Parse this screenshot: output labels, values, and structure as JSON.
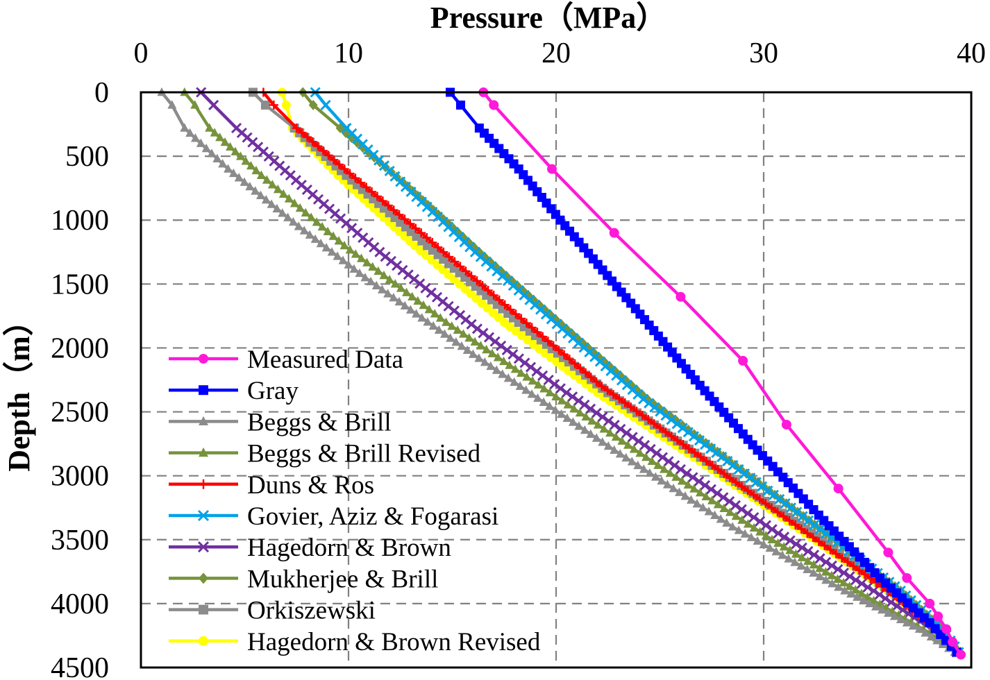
{
  "chart_data": {
    "type": "line",
    "title": "",
    "xlabel": "Pressure（MPa）",
    "ylabel": "Depth（m）",
    "x_axis_position": "top",
    "y_axis_inverted": true,
    "xlim": [
      0,
      40
    ],
    "ylim": [
      0,
      4500
    ],
    "xticks": [
      "0",
      "10",
      "20",
      "30",
      "40"
    ],
    "yticks": [
      "0",
      "500",
      "1000",
      "1500",
      "2000",
      "2500",
      "3000",
      "3500",
      "4000",
      "4500"
    ],
    "grid": true,
    "legend_position": "bottom-left",
    "series": [
      {
        "name": "Measured Data",
        "color": "#ff19d8",
        "marker": "circle",
        "points": [
          [
            16.5,
            0
          ],
          [
            17.0,
            100
          ],
          [
            19.8,
            600
          ],
          [
            22.8,
            1100
          ],
          [
            26.0,
            1600
          ],
          [
            29.0,
            2100
          ],
          [
            31.1,
            2600
          ],
          [
            33.6,
            3100
          ],
          [
            36.0,
            3600
          ],
          [
            36.9,
            3800
          ],
          [
            38.0,
            4000
          ],
          [
            38.4,
            4100
          ],
          [
            38.8,
            4200
          ],
          [
            39.1,
            4300
          ],
          [
            39.5,
            4400
          ]
        ]
      },
      {
        "name": "Gray",
        "color": "#0000ff",
        "marker": "square",
        "points": [
          [
            14.9,
            0
          ],
          [
            15.4,
            100
          ],
          [
            16.3,
            280
          ],
          [
            18.2,
            600
          ],
          [
            20.2,
            1000
          ],
          [
            23.6,
            1650
          ],
          [
            26.7,
            2250
          ],
          [
            29.7,
            2800
          ],
          [
            32.9,
            3350
          ],
          [
            35.6,
            3800
          ],
          [
            38.0,
            4150
          ],
          [
            39.3,
            4380
          ]
        ]
      },
      {
        "name": "Beggs & Brill",
        "color": "#8c8c8c",
        "marker": "triangle",
        "points": [
          [
            1.0,
            0
          ],
          [
            1.5,
            100
          ],
          [
            2.1,
            280
          ],
          [
            4.2,
            600
          ],
          [
            7.6,
            1050
          ],
          [
            10.8,
            1450
          ],
          [
            16.0,
            2050
          ],
          [
            22.8,
            2800
          ],
          [
            28.5,
            3400
          ],
          [
            33.9,
            3900
          ],
          [
            37.5,
            4200
          ],
          [
            39.2,
            4380
          ]
        ]
      },
      {
        "name": "Beggs & Brill Revised",
        "color": "#77933c",
        "marker": "triangle",
        "points": [
          [
            2.1,
            0
          ],
          [
            2.6,
            100
          ],
          [
            3.3,
            280
          ],
          [
            5.8,
            650
          ],
          [
            9.8,
            1200
          ],
          [
            14.7,
            1800
          ],
          [
            19.7,
            2350
          ],
          [
            25.2,
            2950
          ],
          [
            30.4,
            3500
          ],
          [
            35.0,
            3950
          ],
          [
            38.0,
            4230
          ],
          [
            39.3,
            4380
          ]
        ]
      },
      {
        "name": "Duns & Ros",
        "color": "#ff0000",
        "marker": "plus",
        "points": [
          [
            5.9,
            0
          ],
          [
            6.4,
            100
          ],
          [
            7.5,
            280
          ],
          [
            9.8,
            600
          ],
          [
            13.5,
            1100
          ],
          [
            17.8,
            1700
          ],
          [
            22.2,
            2300
          ],
          [
            27.8,
            2950
          ],
          [
            32.1,
            3450
          ],
          [
            36.0,
            3900
          ],
          [
            38.3,
            4200
          ],
          [
            39.3,
            4380
          ]
        ]
      },
      {
        "name": "Govier, Aziz & Fogarasi",
        "color": "#00a2e8",
        "marker": "x",
        "points": [
          [
            8.4,
            0
          ],
          [
            8.9,
            100
          ],
          [
            9.9,
            280
          ],
          [
            12.5,
            700
          ],
          [
            16.1,
            1250
          ],
          [
            20.3,
            1850
          ],
          [
            24.2,
            2400
          ],
          [
            28.8,
            2950
          ],
          [
            33.0,
            3450
          ],
          [
            36.6,
            3900
          ],
          [
            38.6,
            4200
          ],
          [
            39.4,
            4380
          ]
        ]
      },
      {
        "name": "Hagedorn & Brown",
        "color": "#7030a0",
        "marker": "x",
        "points": [
          [
            2.9,
            0
          ],
          [
            3.5,
            100
          ],
          [
            4.6,
            280
          ],
          [
            7.2,
            650
          ],
          [
            11.5,
            1250
          ],
          [
            16.2,
            1850
          ],
          [
            20.5,
            2350
          ],
          [
            26.0,
            2950
          ],
          [
            30.7,
            3450
          ],
          [
            35.3,
            3900
          ],
          [
            38.1,
            4200
          ],
          [
            39.3,
            4380
          ]
        ]
      },
      {
        "name": "Mukherjee & Brill",
        "color": "#77933c",
        "marker": "diamond",
        "points": [
          [
            7.8,
            0
          ],
          [
            8.3,
            100
          ],
          [
            9.6,
            280
          ],
          [
            12.6,
            700
          ],
          [
            16.3,
            1250
          ],
          [
            20.5,
            1850
          ],
          [
            24.4,
            2400
          ],
          [
            28.9,
            2950
          ],
          [
            33.0,
            3450
          ],
          [
            36.6,
            3900
          ],
          [
            38.6,
            4200
          ],
          [
            39.4,
            4380
          ]
        ]
      },
      {
        "name": "Orkiszewski",
        "color": "#8c8c8c",
        "marker": "square",
        "points": [
          [
            5.4,
            0
          ],
          [
            6.0,
            100
          ],
          [
            7.4,
            280
          ],
          [
            9.9,
            650
          ],
          [
            13.8,
            1200
          ],
          [
            18.2,
            1800
          ],
          [
            22.5,
            2350
          ],
          [
            27.8,
            2950
          ],
          [
            32.3,
            3450
          ],
          [
            36.1,
            3900
          ],
          [
            38.4,
            4200
          ],
          [
            39.3,
            4380
          ]
        ]
      },
      {
        "name": "Hagedorn & Brown Revised",
        "color": "#ffff00",
        "marker": "circle",
        "points": [
          [
            6.8,
            0
          ],
          [
            7.0,
            100
          ],
          [
            7.3,
            280
          ],
          [
            9.5,
            650
          ],
          [
            13.2,
            1200
          ],
          [
            17.5,
            1800
          ],
          [
            22.0,
            2350
          ],
          [
            27.5,
            2950
          ],
          [
            32.0,
            3450
          ],
          [
            36.0,
            3900
          ],
          [
            38.3,
            4200
          ],
          [
            39.4,
            4380
          ]
        ]
      }
    ]
  }
}
